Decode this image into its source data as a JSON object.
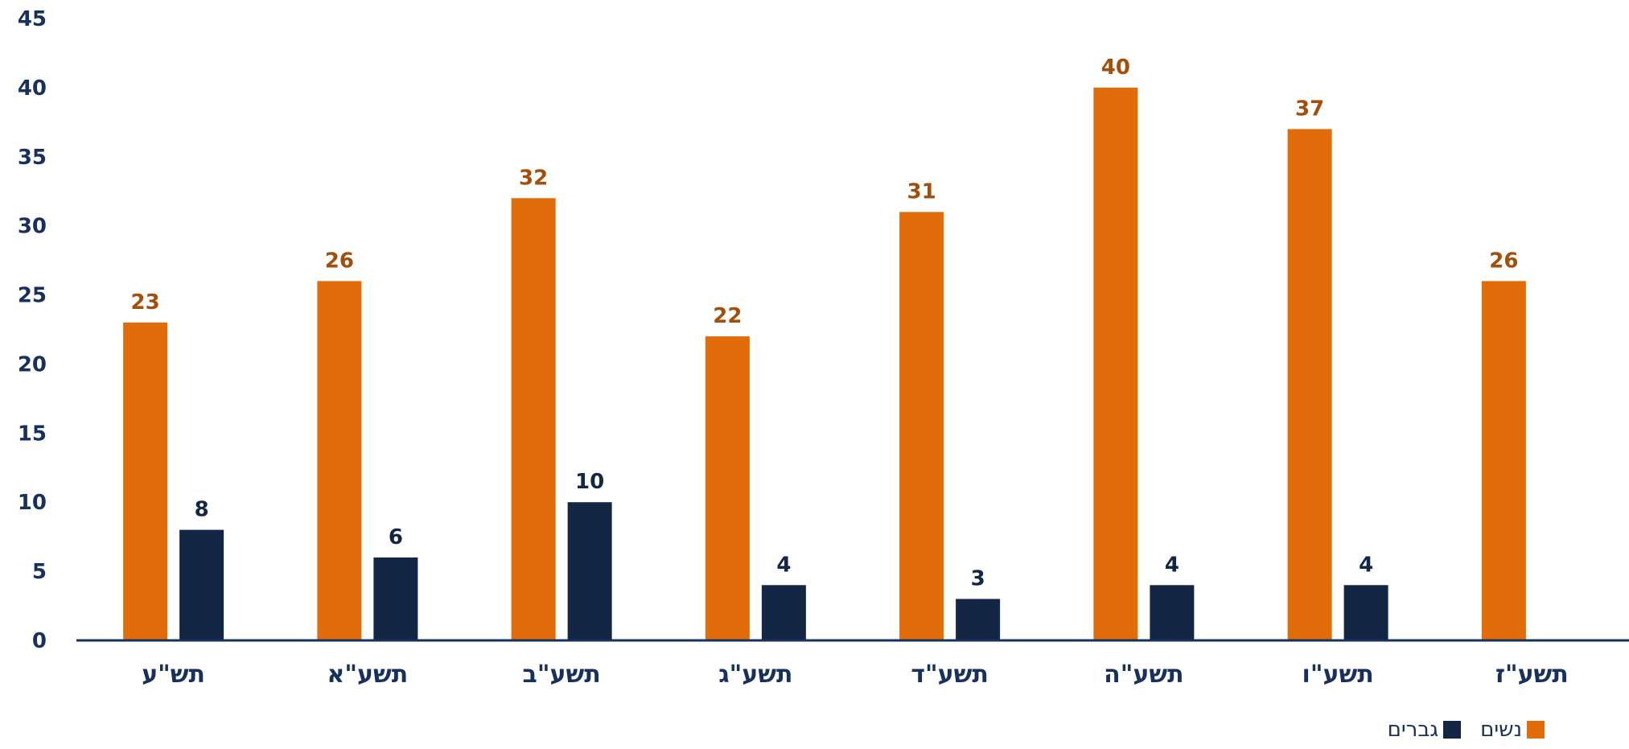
{
  "chart_data": {
    "type": "bar",
    "categories": [
      "תש\"ע",
      "תשע\"א",
      "תשע\"ב",
      "תשע\"ג",
      "תשע\"ד",
      "תשע\"ה",
      "תשע\"ו",
      "תשע\"ז"
    ],
    "series": [
      {
        "name": "נשים",
        "color": "#E36C0A",
        "label_color": "#A34F0B",
        "values": [
          23,
          26,
          32,
          22,
          31,
          40,
          37,
          26
        ]
      },
      {
        "name": "גברים",
        "color": "#132644",
        "label_color": "#132644",
        "values": [
          8,
          6,
          10,
          4,
          3,
          4,
          4,
          null
        ]
      }
    ],
    "ylim": [
      0,
      45
    ],
    "yticks": [
      0,
      5,
      10,
      15,
      20,
      25,
      30,
      35,
      40,
      45
    ],
    "title": "",
    "xlabel": "",
    "ylabel": "",
    "grid": false,
    "legend_position": "bottom-right",
    "axis_color": "#17305C"
  }
}
